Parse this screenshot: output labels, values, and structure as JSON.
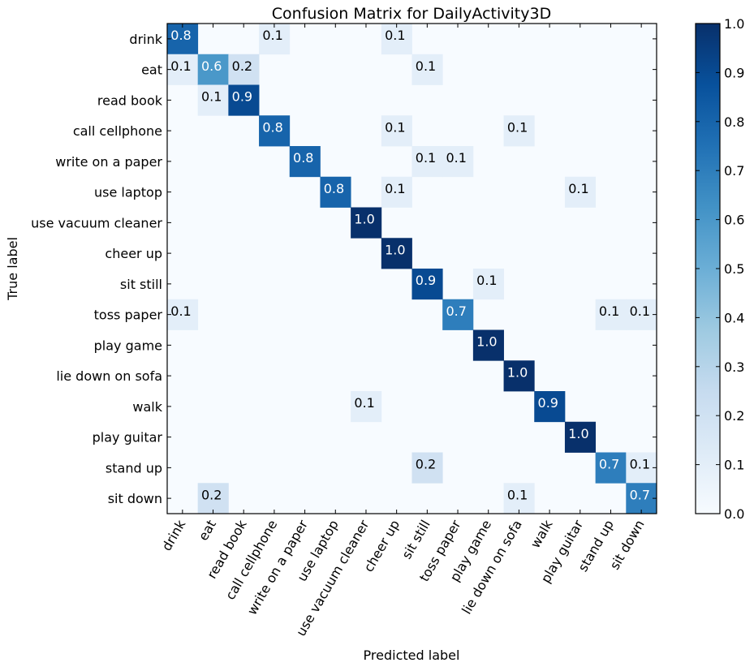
{
  "chart_data": {
    "type": "heatmap",
    "title": "Confusion Matrix for DailyActivity3D",
    "xlabel": "Predicted label",
    "ylabel": "True label",
    "labels": [
      "drink",
      "eat",
      "read book",
      "call cellphone",
      "write on a paper",
      "use laptop",
      "use vacuum cleaner",
      "cheer up",
      "sit still",
      "toss paper",
      "play game",
      "lie down on sofa",
      "walk",
      "play guitar",
      "stand up",
      "sit down"
    ],
    "colormap": "Blues",
    "colorbar": {
      "range": [
        0.0,
        1.0
      ],
      "ticks": [
        "0.0",
        "0.1",
        "0.2",
        "0.3",
        "0.4",
        "0.5",
        "0.6",
        "0.7",
        "0.8",
        "0.9",
        "1.0"
      ]
    },
    "cells": [
      {
        "r": 0,
        "c": 0,
        "v": 0.8,
        "t": "0.8"
      },
      {
        "r": 0,
        "c": 3,
        "v": 0.1,
        "t": "0.1"
      },
      {
        "r": 0,
        "c": 7,
        "v": 0.1,
        "t": "0.1"
      },
      {
        "r": 1,
        "c": 0,
        "v": 0.1,
        "t": "0.1"
      },
      {
        "r": 1,
        "c": 1,
        "v": 0.6,
        "t": "0.6"
      },
      {
        "r": 1,
        "c": 2,
        "v": 0.2,
        "t": "0.2"
      },
      {
        "r": 1,
        "c": 8,
        "v": 0.1,
        "t": "0.1"
      },
      {
        "r": 2,
        "c": 1,
        "v": 0.1,
        "t": "0.1"
      },
      {
        "r": 2,
        "c": 2,
        "v": 0.9,
        "t": "0.9"
      },
      {
        "r": 3,
        "c": 3,
        "v": 0.8,
        "t": "0.8"
      },
      {
        "r": 3,
        "c": 7,
        "v": 0.1,
        "t": "0.1"
      },
      {
        "r": 3,
        "c": 11,
        "v": 0.1,
        "t": "0.1"
      },
      {
        "r": 4,
        "c": 4,
        "v": 0.8,
        "t": "0.8"
      },
      {
        "r": 4,
        "c": 8,
        "v": 0.1,
        "t": "0.1"
      },
      {
        "r": 4,
        "c": 9,
        "v": 0.1,
        "t": "0.1"
      },
      {
        "r": 5,
        "c": 5,
        "v": 0.8,
        "t": "0.8"
      },
      {
        "r": 5,
        "c": 7,
        "v": 0.1,
        "t": "0.1"
      },
      {
        "r": 5,
        "c": 13,
        "v": 0.1,
        "t": "0.1"
      },
      {
        "r": 6,
        "c": 6,
        "v": 1.0,
        "t": "1.0"
      },
      {
        "r": 7,
        "c": 7,
        "v": 1.0,
        "t": "1.0"
      },
      {
        "r": 8,
        "c": 8,
        "v": 0.9,
        "t": "0.9"
      },
      {
        "r": 8,
        "c": 10,
        "v": 0.1,
        "t": "0.1"
      },
      {
        "r": 9,
        "c": 0,
        "v": 0.1,
        "t": "0.1"
      },
      {
        "r": 9,
        "c": 9,
        "v": 0.7,
        "t": "0.7"
      },
      {
        "r": 9,
        "c": 14,
        "v": 0.1,
        "t": "0.1"
      },
      {
        "r": 9,
        "c": 15,
        "v": 0.1,
        "t": "0.1"
      },
      {
        "r": 10,
        "c": 10,
        "v": 1.0,
        "t": "1.0"
      },
      {
        "r": 11,
        "c": 11,
        "v": 1.0,
        "t": "1.0"
      },
      {
        "r": 12,
        "c": 6,
        "v": 0.1,
        "t": "0.1"
      },
      {
        "r": 12,
        "c": 12,
        "v": 0.9,
        "t": "0.9"
      },
      {
        "r": 13,
        "c": 13,
        "v": 1.0,
        "t": "1.0"
      },
      {
        "r": 14,
        "c": 8,
        "v": 0.2,
        "t": "0.2"
      },
      {
        "r": 14,
        "c": 14,
        "v": 0.7,
        "t": "0.7"
      },
      {
        "r": 14,
        "c": 15,
        "v": 0.1,
        "t": "0.1"
      },
      {
        "r": 15,
        "c": 1,
        "v": 0.2,
        "t": "0.2"
      },
      {
        "r": 15,
        "c": 11,
        "v": 0.1,
        "t": "0.1"
      },
      {
        "r": 15,
        "c": 15,
        "v": 0.7,
        "t": "0.7"
      }
    ]
  }
}
